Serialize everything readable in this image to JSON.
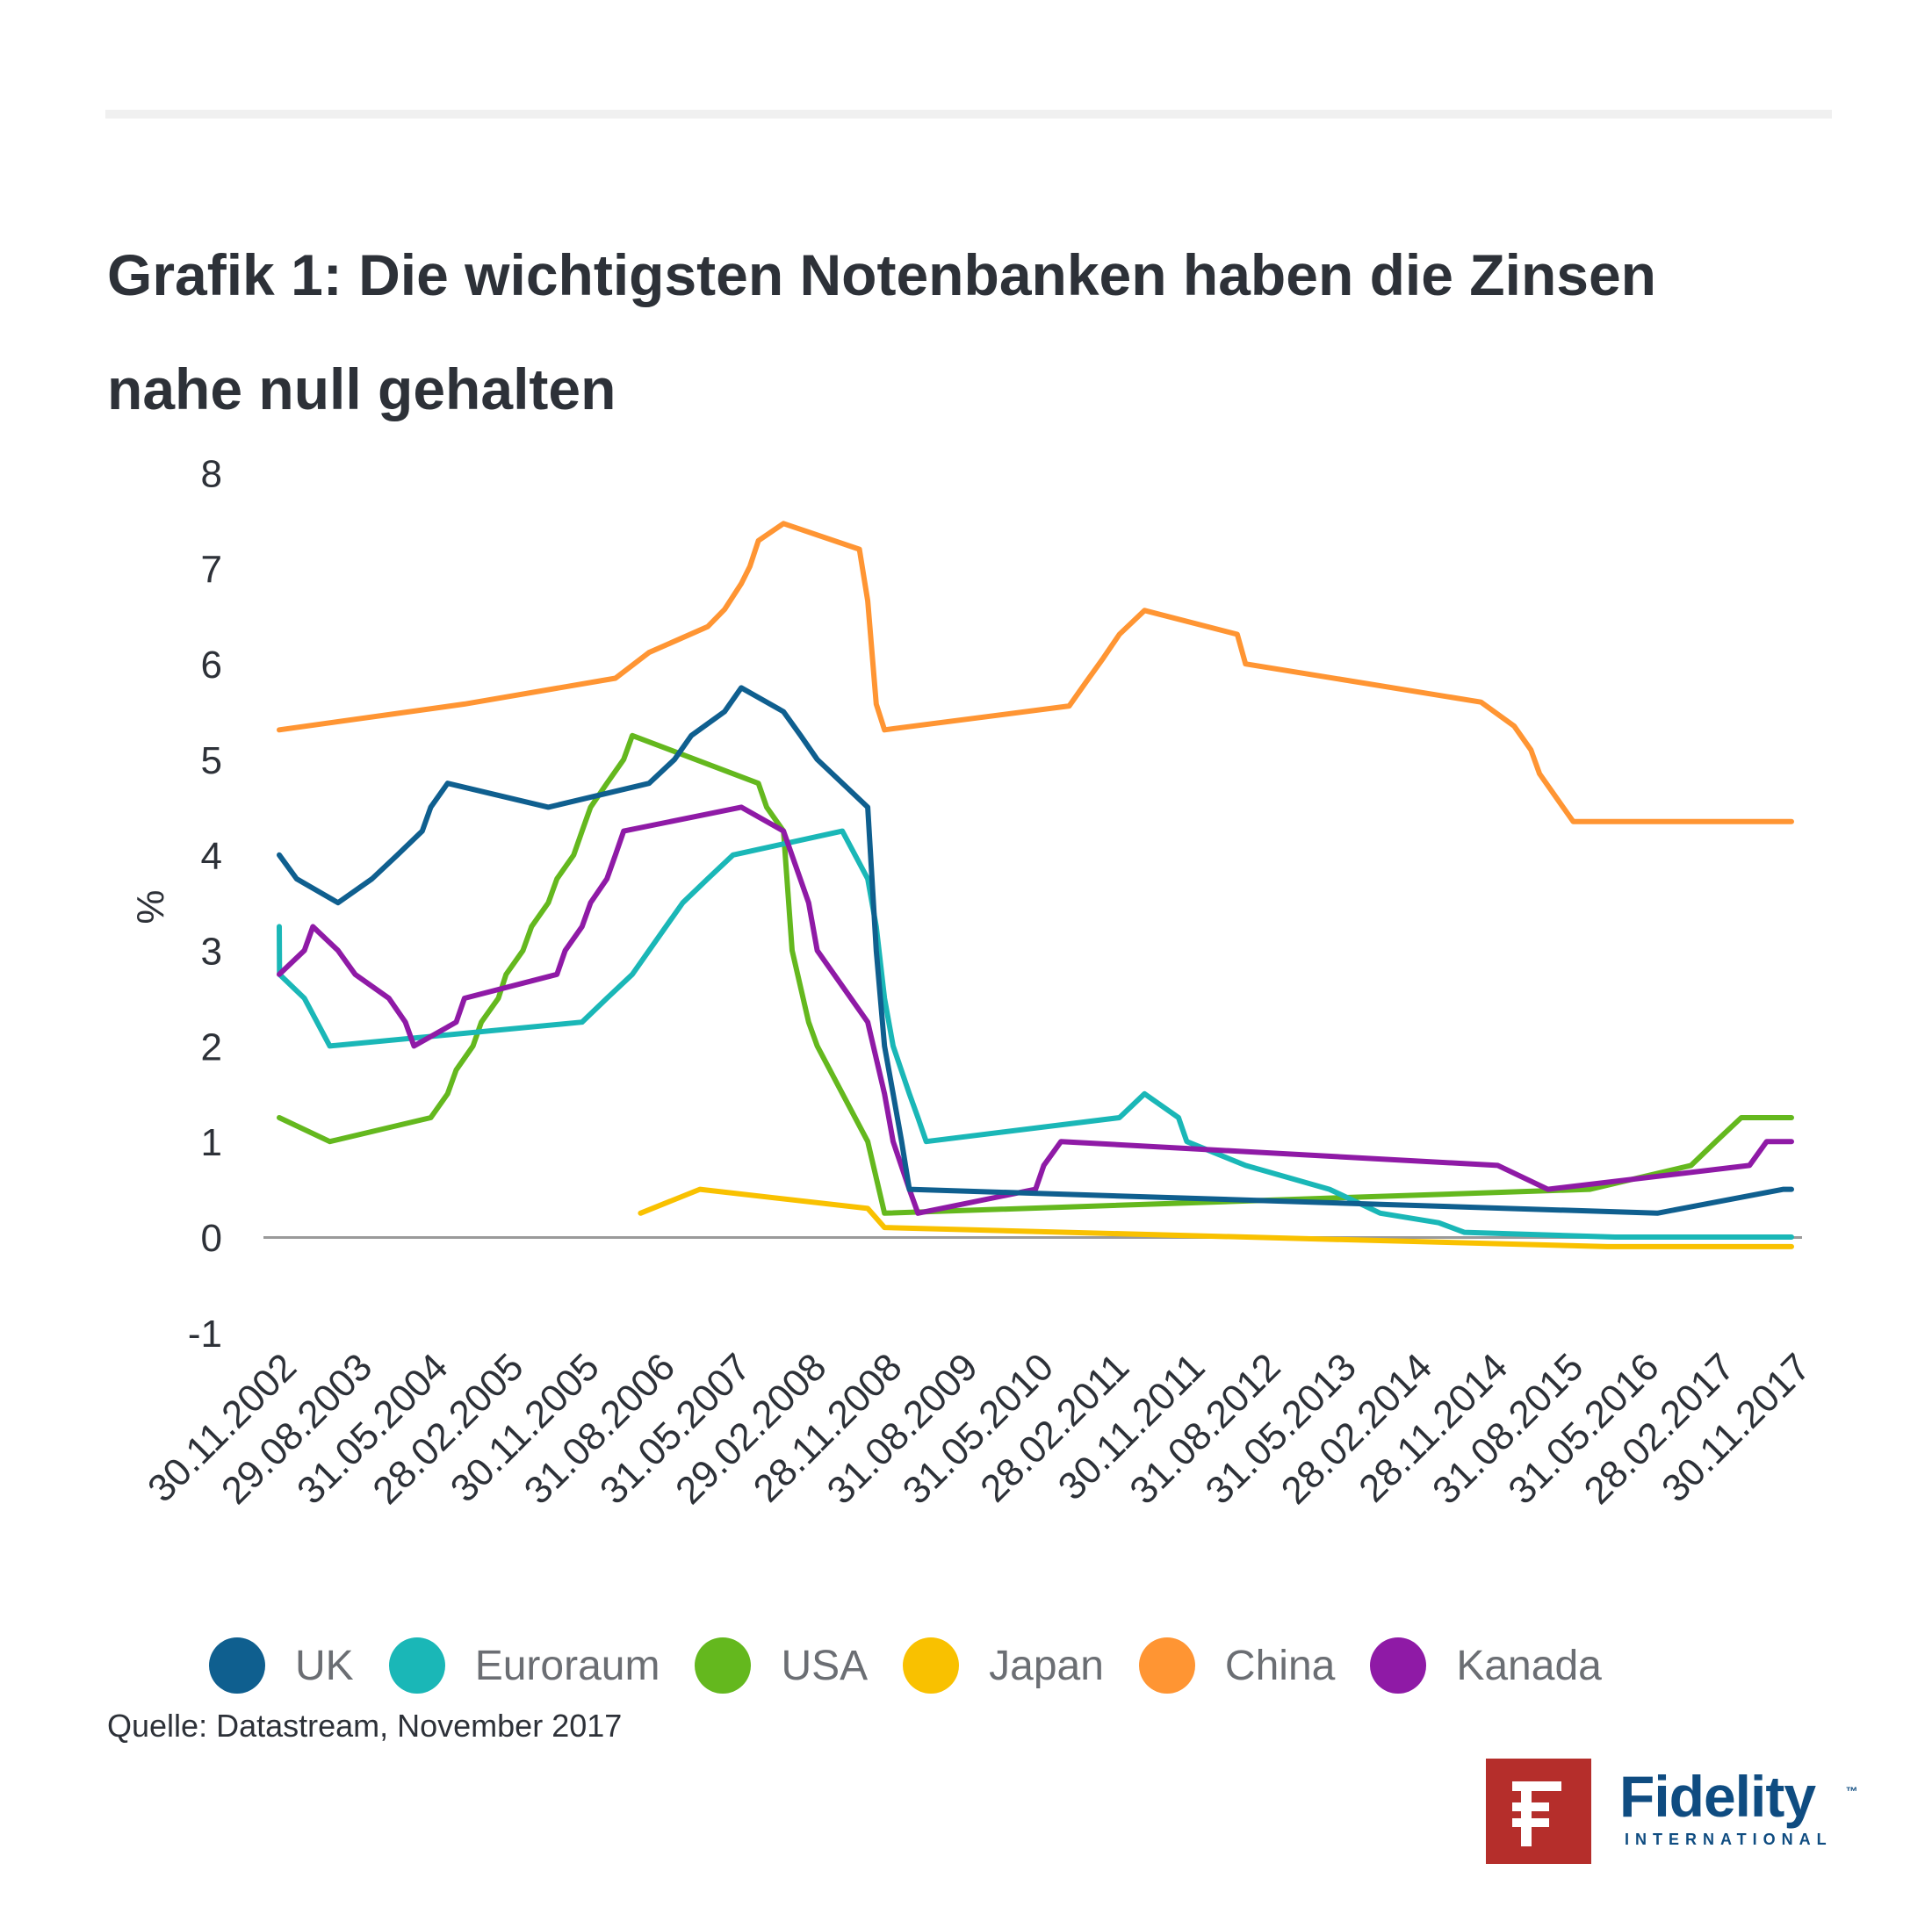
{
  "title_line1": "Grafik 1: Die wichtigsten Notenbanken haben die Zinsen",
  "title_line2": "nahe null gehalten",
  "source": "Quelle: Datastream, November 2017",
  "logo": {
    "word": "Fidelity",
    "sub": "INTERNATIONAL",
    "tm": "™",
    "icon": "fidelity-f-logo-icon"
  },
  "colors": {
    "UK": "#0f5f8f",
    "Euroraum": "#1ab7b7",
    "USA": "#64b81e",
    "Japan": "#f9c100",
    "China": "#ff9533",
    "Kanada": "#8f1aa6",
    "zero_line": "#9a9a9a"
  },
  "chart_data": {
    "type": "line",
    "ylabel": "%",
    "ylim": [
      -1,
      8
    ],
    "yticks": [
      -1,
      0,
      1,
      2,
      3,
      4,
      5,
      6,
      7,
      8
    ],
    "x_tick_labels": [
      "30.11.2002",
      "29.08.2003",
      "31.05.2004",
      "28.02.2005",
      "30.11.2005",
      "31.08.2006",
      "31.05.2007",
      "29.02.2008",
      "28.11.2008",
      "31.08.2009",
      "31.05.2010",
      "28.02.2011",
      "30.11.2011",
      "31.08.2012",
      "31.05.2013",
      "28.02.2014",
      "28.11.2014",
      "31.08.2015",
      "31.05.2016",
      "28.02.2017",
      "30.11.2017"
    ],
    "x_range": [
      "2002-11-30",
      "2017-11-30"
    ],
    "grid": false,
    "legend_position": "bottom",
    "series": [
      {
        "name": "UK",
        "points": [
          [
            "2002-11-30",
            4
          ],
          [
            "2003-02-01",
            3.75
          ],
          [
            "2003-07-01",
            3.5
          ],
          [
            "2003-11-01",
            3.75
          ],
          [
            "2004-02-01",
            4
          ],
          [
            "2004-05-01",
            4.25
          ],
          [
            "2004-06-01",
            4.5
          ],
          [
            "2004-08-01",
            4.75
          ],
          [
            "2005-08-01",
            4.5
          ],
          [
            "2006-08-01",
            4.75
          ],
          [
            "2006-11-01",
            5
          ],
          [
            "2007-01-01",
            5.25
          ],
          [
            "2007-05-01",
            5.5
          ],
          [
            "2007-07-01",
            5.75
          ],
          [
            "2007-12-01",
            5.5
          ],
          [
            "2008-02-01",
            5.25
          ],
          [
            "2008-04-01",
            5
          ],
          [
            "2008-10-01",
            4.5
          ],
          [
            "2008-11-01",
            3
          ],
          [
            "2008-12-01",
            2
          ],
          [
            "2009-01-01",
            1.5
          ],
          [
            "2009-02-01",
            1
          ],
          [
            "2009-03-01",
            0.5
          ],
          [
            "2016-08-01",
            0.25
          ],
          [
            "2017-11-01",
            0.5
          ],
          [
            "2017-11-30",
            0.5
          ]
        ]
      },
      {
        "name": "Euroraum",
        "points": [
          [
            "2002-11-30",
            3.25
          ],
          [
            "2002-12-01",
            2.75
          ],
          [
            "2003-03-01",
            2.5
          ],
          [
            "2003-06-01",
            2
          ],
          [
            "2005-12-01",
            2.25
          ],
          [
            "2006-03-01",
            2.5
          ],
          [
            "2006-06-01",
            2.75
          ],
          [
            "2006-08-01",
            3
          ],
          [
            "2006-10-01",
            3.25
          ],
          [
            "2006-12-01",
            3.5
          ],
          [
            "2007-03-01",
            3.75
          ],
          [
            "2007-06-01",
            4
          ],
          [
            "2008-07-01",
            4.25
          ],
          [
            "2008-10-01",
            3.75
          ],
          [
            "2008-11-01",
            3.25
          ],
          [
            "2008-12-01",
            2.5
          ],
          [
            "2009-01-01",
            2
          ],
          [
            "2009-03-01",
            1.5
          ],
          [
            "2009-04-01",
            1.25
          ],
          [
            "2009-05-01",
            1
          ],
          [
            "2011-04-01",
            1.25
          ],
          [
            "2011-07-01",
            1.5
          ],
          [
            "2011-11-01",
            1.25
          ],
          [
            "2011-12-01",
            1
          ],
          [
            "2012-07-01",
            0.75
          ],
          [
            "2013-05-01",
            0.5
          ],
          [
            "2013-11-01",
            0.25
          ],
          [
            "2014-06-01",
            0.15
          ],
          [
            "2014-09-01",
            0.05
          ],
          [
            "2016-03-01",
            0
          ],
          [
            "2017-11-30",
            0
          ]
        ]
      },
      {
        "name": "USA",
        "points": [
          [
            "2002-11-30",
            1.25
          ],
          [
            "2003-06-01",
            1
          ],
          [
            "2004-06-01",
            1.25
          ],
          [
            "2004-08-01",
            1.5
          ],
          [
            "2004-09-01",
            1.75
          ],
          [
            "2004-11-01",
            2
          ],
          [
            "2004-12-01",
            2.25
          ],
          [
            "2005-02-01",
            2.5
          ],
          [
            "2005-03-01",
            2.75
          ],
          [
            "2005-05-01",
            3
          ],
          [
            "2005-06-01",
            3.25
          ],
          [
            "2005-08-01",
            3.5
          ],
          [
            "2005-09-01",
            3.75
          ],
          [
            "2005-11-01",
            4
          ],
          [
            "2005-12-01",
            4.25
          ],
          [
            "2006-01-01",
            4.5
          ],
          [
            "2006-03-01",
            4.75
          ],
          [
            "2006-05-01",
            5
          ],
          [
            "2006-06-01",
            5.25
          ],
          [
            "2007-09-01",
            4.75
          ],
          [
            "2007-10-01",
            4.5
          ],
          [
            "2007-12-01",
            4.25
          ],
          [
            "2008-01-01",
            3
          ],
          [
            "2008-03-01",
            2.25
          ],
          [
            "2008-04-01",
            2
          ],
          [
            "2008-10-01",
            1
          ],
          [
            "2008-12-01",
            0.25
          ],
          [
            "2015-12-01",
            0.5
          ],
          [
            "2016-12-01",
            0.75
          ],
          [
            "2017-03-01",
            1
          ],
          [
            "2017-06-01",
            1.25
          ],
          [
            "2017-11-30",
            1.25
          ]
        ]
      },
      {
        "name": "Japan",
        "points": [
          [
            "2006-07-01",
            0.25
          ],
          [
            "2007-02-01",
            0.5
          ],
          [
            "2008-10-01",
            0.3
          ],
          [
            "2008-12-01",
            0.1
          ],
          [
            "2016-02-01",
            -0.1
          ],
          [
            "2017-11-30",
            -0.1
          ]
        ]
      },
      {
        "name": "China",
        "points": [
          [
            "2002-11-30",
            5.31
          ],
          [
            "2004-10-01",
            5.58
          ],
          [
            "2006-04-01",
            5.85
          ],
          [
            "2006-08-01",
            6.12
          ],
          [
            "2007-03-01",
            6.39
          ],
          [
            "2007-05-01",
            6.57
          ],
          [
            "2007-07-01",
            6.84
          ],
          [
            "2007-08-01",
            7.02
          ],
          [
            "2007-09-01",
            7.29
          ],
          [
            "2007-12-01",
            7.47
          ],
          [
            "2008-09-01",
            7.2
          ],
          [
            "2008-10-01",
            6.66
          ],
          [
            "2008-11-01",
            5.58
          ],
          [
            "2008-12-01",
            5.31
          ],
          [
            "2010-10-01",
            5.56
          ],
          [
            "2010-12-01",
            5.81
          ],
          [
            "2011-02-01",
            6.06
          ],
          [
            "2011-04-01",
            6.31
          ],
          [
            "2011-07-01",
            6.56
          ],
          [
            "2012-06-01",
            6.31
          ],
          [
            "2012-07-01",
            6
          ],
          [
            "2014-11-01",
            5.6
          ],
          [
            "2015-03-01",
            5.35
          ],
          [
            "2015-05-01",
            5.1
          ],
          [
            "2015-06-01",
            4.85
          ],
          [
            "2015-08-01",
            4.6
          ],
          [
            "2015-10-01",
            4.35
          ],
          [
            "2017-11-30",
            4.35
          ]
        ]
      },
      {
        "name": "Kanada",
        "points": [
          [
            "2002-11-30",
            2.75
          ],
          [
            "2003-03-01",
            3
          ],
          [
            "2003-04-01",
            3.25
          ],
          [
            "2003-07-01",
            3
          ],
          [
            "2003-09-01",
            2.75
          ],
          [
            "2004-01-01",
            2.5
          ],
          [
            "2004-03-01",
            2.25
          ],
          [
            "2004-04-01",
            2
          ],
          [
            "2004-09-01",
            2.25
          ],
          [
            "2004-10-01",
            2.5
          ],
          [
            "2005-09-01",
            2.75
          ],
          [
            "2005-10-01",
            3
          ],
          [
            "2005-12-01",
            3.25
          ],
          [
            "2006-01-01",
            3.5
          ],
          [
            "2006-03-01",
            3.75
          ],
          [
            "2006-04-01",
            4
          ],
          [
            "2006-05-01",
            4.25
          ],
          [
            "2007-07-01",
            4.5
          ],
          [
            "2007-12-01",
            4.25
          ],
          [
            "2008-03-01",
            3.5
          ],
          [
            "2008-04-01",
            3
          ],
          [
            "2008-10-01",
            2.25
          ],
          [
            "2008-12-01",
            1.5
          ],
          [
            "2009-01-01",
            1
          ],
          [
            "2009-03-01",
            0.5
          ],
          [
            "2009-04-01",
            0.25
          ],
          [
            "2010-06-01",
            0.5
          ],
          [
            "2010-07-01",
            0.75
          ],
          [
            "2010-09-01",
            1
          ],
          [
            "2015-01-01",
            0.75
          ],
          [
            "2015-07-01",
            0.5
          ],
          [
            "2017-07-01",
            0.75
          ],
          [
            "2017-09-01",
            1
          ],
          [
            "2017-11-30",
            1
          ]
        ]
      }
    ]
  }
}
